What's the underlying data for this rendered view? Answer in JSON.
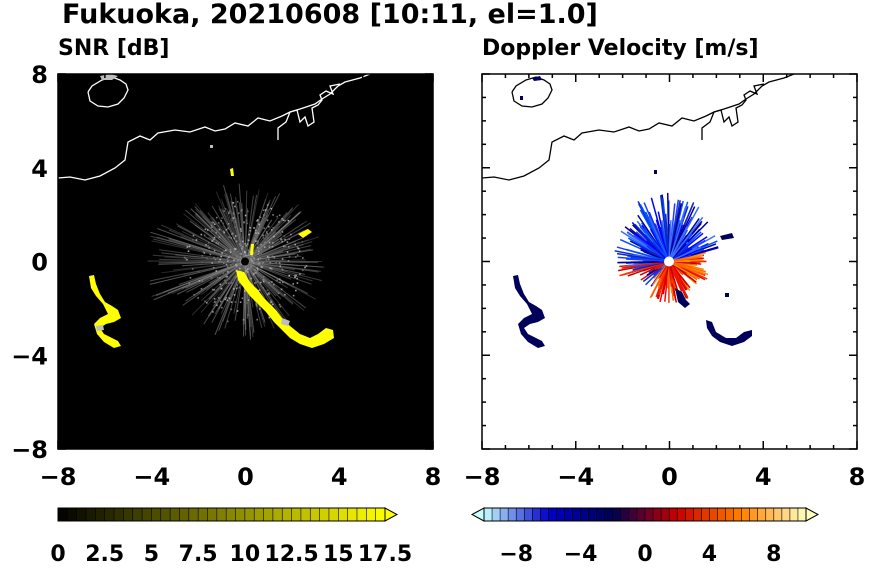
{
  "title": "Fukuoka, 20210608 [10:11, el=1.0]",
  "chart_data": [
    {
      "type": "heatmap",
      "subtitle": "SNR [dB]",
      "xlim": [
        -8,
        8
      ],
      "ylim": [
        -8,
        8
      ],
      "xticks": [
        "−8",
        "−4",
        "0",
        "4",
        "8"
      ],
      "yticks": [
        "8",
        "4",
        "0",
        "−4",
        "−8"
      ],
      "background": "#000000",
      "coastline_color": "#ffffff",
      "colorbar": {
        "range": [
          0,
          17.5
        ],
        "ticks": [
          "0",
          "2.5",
          "5",
          "7.5",
          "10",
          "12.5",
          "15",
          "17.5"
        ],
        "extend": "max",
        "colors": [
          "#000000",
          "#ffff00"
        ]
      }
    },
    {
      "type": "heatmap",
      "subtitle": "Doppler Velocity [m/s]",
      "xlim": [
        -8,
        8
      ],
      "ylim": [
        -8,
        8
      ],
      "xticks": [
        "−8",
        "−4",
        "0",
        "4",
        "8"
      ],
      "yticks": [
        "8",
        "4",
        "0",
        "−4",
        "−8"
      ],
      "background": "#ffffff",
      "coastline_color": "#000000",
      "colorbar": {
        "range": [
          -10,
          10
        ],
        "ticks": [
          "−8",
          "−4",
          "0",
          "4",
          "8"
        ],
        "extend": "both",
        "colors": [
          "#c8ffff",
          "#0000c8",
          "#000050",
          "#c80000",
          "#ff8000",
          "#ffffc0"
        ]
      }
    }
  ]
}
